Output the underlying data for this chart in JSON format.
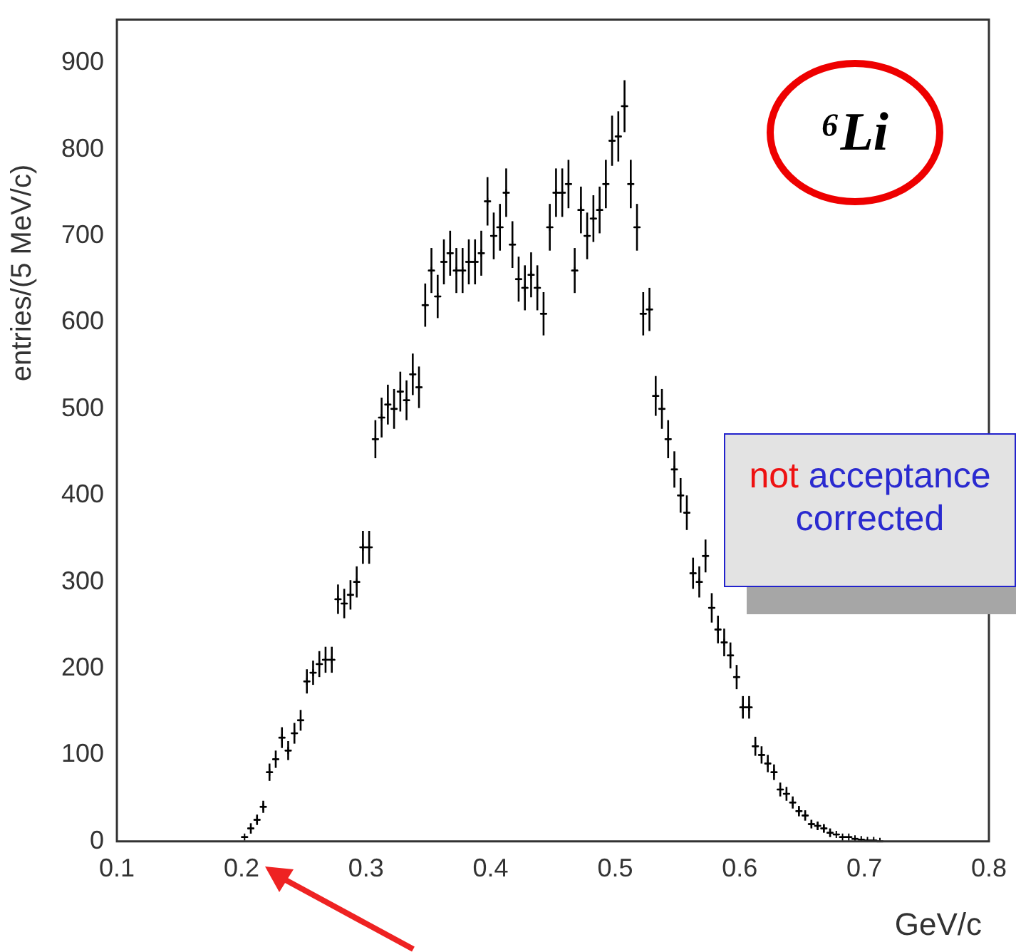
{
  "chart_data": {
    "type": "scatter",
    "xlabel": "GeV/c",
    "ylabel": "entries/(5 MeV/c)",
    "annotations": [
      "⁶Li",
      "not",
      "acceptance corrected"
    ],
    "x": [
      0.2025,
      0.2075,
      0.2125,
      0.2175,
      0.2225,
      0.2275,
      0.2325,
      0.2375,
      0.2425,
      0.2475,
      0.2525,
      0.2575,
      0.2625,
      0.2675,
      0.2725,
      0.2775,
      0.2825,
      0.2875,
      0.2925,
      0.2975,
      0.3025,
      0.3075,
      0.3125,
      0.3175,
      0.3225,
      0.3275,
      0.3325,
      0.3375,
      0.3425,
      0.3475,
      0.3525,
      0.3575,
      0.3625,
      0.3675,
      0.3725,
      0.3775,
      0.3825,
      0.3875,
      0.3925,
      0.3975,
      0.4025,
      0.4075,
      0.4125,
      0.4175,
      0.4225,
      0.4275,
      0.4325,
      0.4375,
      0.4425,
      0.4475,
      0.4525,
      0.4575,
      0.4625,
      0.4675,
      0.4725,
      0.4775,
      0.4825,
      0.4875,
      0.4925,
      0.4975,
      0.5025,
      0.5075,
      0.5125,
      0.5175,
      0.5225,
      0.5275,
      0.5325,
      0.5375,
      0.5425,
      0.5475,
      0.5525,
      0.5575,
      0.5625,
      0.5675,
      0.5725,
      0.5775,
      0.5825,
      0.5875,
      0.5925,
      0.5975,
      0.6025,
      0.6075,
      0.6125,
      0.6175,
      0.6225,
      0.6275,
      0.6325,
      0.6375,
      0.6425,
      0.6475,
      0.6525,
      0.6575,
      0.6625,
      0.6675,
      0.6725,
      0.6775,
      0.6825,
      0.6875,
      0.6925,
      0.6975,
      0.7025,
      0.7075,
      0.7125
    ],
    "values": [
      5,
      15,
      25,
      40,
      80,
      95,
      120,
      105,
      125,
      140,
      185,
      195,
      205,
      210,
      210,
      280,
      275,
      285,
      300,
      340,
      340,
      465,
      490,
      505,
      500,
      520,
      510,
      540,
      525,
      620,
      660,
      630,
      670,
      680,
      660,
      660,
      670,
      670,
      680,
      740,
      700,
      710,
      750,
      690,
      650,
      640,
      655,
      640,
      610,
      710,
      750,
      750,
      760,
      660,
      730,
      700,
      720,
      730,
      760,
      810,
      815,
      850,
      760,
      710,
      610,
      615,
      515,
      500,
      465,
      430,
      400,
      380,
      310,
      300,
      330,
      270,
      245,
      230,
      215,
      190,
      155,
      155,
      110,
      100,
      90,
      80,
      60,
      55,
      45,
      35,
      30,
      20,
      18,
      15,
      10,
      8,
      5,
      5,
      3,
      2,
      1,
      1,
      0
    ],
    "errors": [
      null,
      6,
      6,
      7,
      10,
      10,
      12,
      11,
      12,
      12,
      14,
      14,
      15,
      15,
      15,
      17,
      17,
      17,
      18,
      19,
      19,
      22,
      23,
      23,
      23,
      23,
      23,
      24,
      24,
      25,
      26,
      25,
      26,
      26,
      26,
      26,
      26,
      26,
      26,
      28,
      27,
      27,
      28,
      27,
      26,
      26,
      26,
      26,
      25,
      27,
      28,
      28,
      28,
      26,
      27,
      27,
      27,
      27,
      28,
      29,
      29,
      30,
      28,
      27,
      25,
      25,
      23,
      23,
      22,
      21,
      20,
      20,
      18,
      18,
      19,
      17,
      16,
      16,
      15,
      14,
      13,
      13,
      11,
      10,
      10,
      9,
      8,
      8,
      7,
      6,
      6,
      5,
      5,
      5,
      5,
      null,
      null,
      null,
      null,
      null,
      null,
      null,
      null
    ],
    "xerrors": [
      0.0025,
      0.0025,
      0.0025,
      0.0025,
      0.0025,
      0.0025,
      0.0025,
      0.0025,
      0.0025,
      0.0025,
      0.0025,
      0.0025,
      0.0025,
      0.0025,
      0.0025,
      0.0025,
      0.0025,
      0.0025,
      0.0025,
      0.0025,
      0.0025,
      0.0025,
      0.0025,
      0.0025,
      0.0025,
      0.0025,
      0.0025,
      0.0025,
      0.0025,
      0.0025,
      0.0025,
      0.0025,
      0.0025,
      0.0025,
      0.0025,
      0.0025,
      0.0025,
      0.0025,
      0.0025,
      0.0025,
      0.0025,
      0.0025,
      0.0025,
      0.0025,
      0.0025,
      0.0025,
      0.0025,
      0.0025,
      0.0025,
      0.0025,
      0.0025,
      0.0025,
      0.0025,
      0.0025,
      0.0025,
      0.0025,
      0.0025,
      0.0025,
      0.0025,
      0.0025,
      0.0025,
      0.0025,
      0.0025,
      0.0025,
      0.0025,
      0.0025,
      0.0025,
      0.0025,
      0.0025,
      0.0025,
      0.0025,
      0.0025,
      0.0025,
      0.0025,
      0.0025,
      0.0025,
      0.0025,
      0.0025,
      0.0025,
      0.0025,
      0.0025,
      0.0025,
      0.0025,
      0.0025,
      0.0025,
      0.0025,
      0.0025,
      0.0025,
      0.0025,
      0.0025,
      0.0025,
      0.0025,
      0.0025,
      0.0025,
      0.0025,
      0.0025,
      0.0025,
      0.0025,
      0.0025,
      0.0025,
      0.0025,
      0.0025,
      0.0025
    ],
    "color": "#000000",
    "marker": "cross",
    "xlim": [
      0.1,
      0.8
    ],
    "xticks": [
      0.1,
      0.2,
      0.3,
      0.4,
      0.5,
      0.6,
      0.7,
      0.8
    ],
    "ylim": [
      0,
      950
    ],
    "yticks": [
      0,
      100,
      200,
      300,
      400,
      500,
      600,
      700,
      800,
      900
    ],
    "grid": false,
    "legend": false
  }
}
